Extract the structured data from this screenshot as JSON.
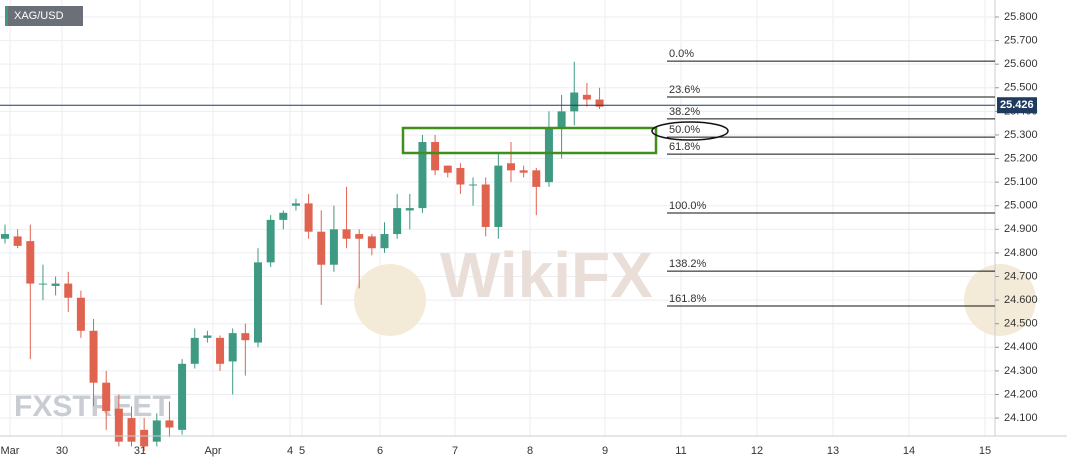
{
  "chart_data": {
    "type": "candlestick",
    "title": "XAG/USD",
    "watermarks": [
      "WikiFX",
      "FXSTREET"
    ],
    "x_labels": [
      "Mar",
      "30",
      "31",
      "Apr",
      "4",
      "5",
      "6",
      "7",
      "8",
      "9",
      "11",
      "12",
      "13",
      "14",
      "15"
    ],
    "open": [
      24.86,
      24.87,
      24.85,
      24.67,
      24.66,
      24.67,
      24.61,
      24.47,
      24.25,
      24.14,
      24.1,
      24.05,
      24.0,
      24.09,
      24.05,
      24.33,
      24.44,
      24.44,
      24.34,
      24.46,
      24.42,
      24.76,
      24.94,
      25.0,
      25.01,
      24.89,
      24.75,
      24.9,
      24.88,
      24.87,
      24.82,
      24.88,
      24.98,
      24.99,
      25.27,
      25.17,
      25.16,
      25.09,
      25.09,
      24.91,
      25.18,
      25.15,
      25.15,
      25.1,
      25.33,
      25.4,
      25.47,
      25.45
    ],
    "high": [
      24.92,
      24.9,
      24.92,
      24.75,
      24.7,
      24.72,
      24.64,
      24.52,
      24.3,
      24.2,
      24.15,
      24.1,
      24.12,
      24.17,
      24.35,
      24.48,
      24.47,
      24.45,
      24.48,
      24.5,
      24.82,
      24.96,
      24.98,
      25.03,
      25.05,
      24.98,
      25.0,
      25.08,
      24.9,
      24.88,
      24.93,
      25.05,
      25.05,
      25.3,
      25.3,
      25.17,
      25.18,
      25.12,
      25.12,
      25.22,
      25.27,
      25.17,
      25.16,
      25.4,
      25.47,
      25.61,
      25.52,
      25.5
    ],
    "low": [
      24.84,
      24.82,
      24.35,
      24.6,
      24.62,
      24.55,
      24.44,
      24.15,
      24.05,
      23.98,
      23.98,
      23.96,
      23.98,
      24.02,
      24.03,
      24.31,
      24.42,
      24.3,
      24.2,
      24.28,
      24.4,
      24.74,
      24.9,
      24.98,
      24.86,
      24.58,
      24.72,
      24.82,
      24.65,
      24.79,
      24.8,
      24.86,
      24.9,
      24.97,
      25.13,
      25.12,
      25.05,
      25.0,
      24.87,
      24.86,
      25.1,
      25.12,
      24.96,
      25.08,
      25.2,
      25.34,
      25.42,
      25.41
    ],
    "close": [
      24.88,
      24.83,
      24.67,
      24.67,
      24.67,
      24.61,
      24.47,
      24.25,
      24.13,
      24.0,
      24.0,
      23.98,
      24.09,
      24.06,
      24.33,
      24.44,
      24.45,
      24.33,
      24.46,
      24.43,
      24.76,
      24.94,
      24.97,
      25.01,
      24.89,
      24.75,
      24.9,
      24.86,
      24.86,
      24.82,
      24.88,
      24.99,
      24.99,
      25.27,
      25.15,
      25.14,
      25.09,
      25.09,
      24.91,
      25.17,
      25.15,
      25.14,
      25.08,
      25.33,
      25.4,
      25.48,
      25.45,
      25.42
    ],
    "up_color": "#3f9a84",
    "down_color": "#e0634f",
    "ylim": [
      24.024,
      25.872
    ],
    "yticks": [
      {
        "value": 25.8,
        "label": "25.800"
      },
      {
        "value": 25.7,
        "label": "25.700"
      },
      {
        "value": 25.6,
        "label": "25.600"
      },
      {
        "value": 25.5,
        "label": "25.500"
      },
      {
        "value": 25.4,
        "label": "25.400"
      },
      {
        "value": 25.3,
        "label": "25.300"
      },
      {
        "value": 25.2,
        "label": "25.200"
      },
      {
        "value": 25.1,
        "label": "25.100"
      },
      {
        "value": 25.0,
        "label": "25.000"
      },
      {
        "value": 24.9,
        "label": "24.900"
      },
      {
        "value": 24.8,
        "label": "24.800"
      },
      {
        "value": 24.7,
        "label": "24.700"
      },
      {
        "value": 24.6,
        "label": "24.600"
      },
      {
        "value": 24.5,
        "label": "24.500"
      },
      {
        "value": 24.4,
        "label": "24.400"
      },
      {
        "value": 24.3,
        "label": "24.300"
      },
      {
        "value": 24.2,
        "label": "24.200"
      },
      {
        "value": 24.1,
        "label": "24.100"
      }
    ],
    "grid": true,
    "last_price": {
      "value": 25.426,
      "label": "25.426",
      "color": "#1f3a5f"
    },
    "fib_levels": [
      {
        "label": "0.0%",
        "value": 25.613
      },
      {
        "label": "23.6%",
        "value": 25.461
      },
      {
        "label": "38.2%",
        "value": 25.368
      },
      {
        "label": "50.0%",
        "value": 25.291
      },
      {
        "label": "61.8%",
        "value": 25.219
      },
      {
        "label": "100.0%",
        "value": 24.969
      },
      {
        "label": "138.2%",
        "value": 24.723
      },
      {
        "label": "161.8%",
        "value": 24.575
      }
    ]
  }
}
